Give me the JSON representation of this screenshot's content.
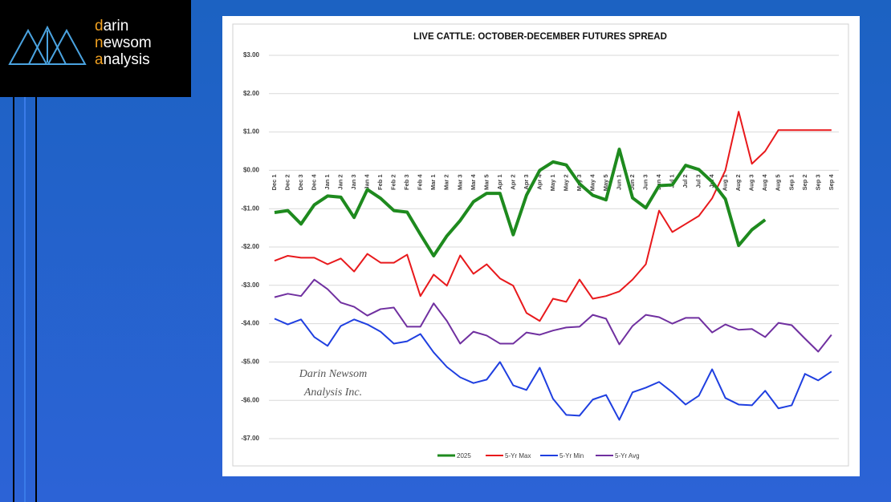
{
  "logo": {
    "lines": [
      "darin",
      "newsom",
      "analysis"
    ]
  },
  "chart_data": {
    "type": "line",
    "title": "LIVE CATTLE: OCTOBER-DECEMBER FUTURES SPREAD",
    "watermark": [
      "Darin Newsom",
      "Analysis Inc."
    ],
    "categories": [
      "Dec 1",
      "Dec 2",
      "Dec 3",
      "Dec 4",
      "Jan 1",
      "Jan 2",
      "Jan 3",
      "Jan 4",
      "Feb 1",
      "Feb 2",
      "Feb 3",
      "Feb 4",
      "Mar 1",
      "Mar 2",
      "Mar 3",
      "Mar 4",
      "Mar 5",
      "Apr 1",
      "Apr 2",
      "Apr 3",
      "Apr 4",
      "May 1",
      "May 2",
      "May 3",
      "May 4",
      "May 5",
      "Jun 1",
      "Jun 2",
      "Jun 3",
      "Jun 4",
      "Jul 1",
      "Jul 2",
      "Jul 3",
      "Jul 4",
      "Aug 1",
      "Aug 2",
      "Aug 3",
      "Aug 4",
      "Aug 5",
      "Sep 1",
      "Sep 2",
      "Sep 3",
      "Sep 4"
    ],
    "series": [
      {
        "name": "2025",
        "color": "#1e8a1e",
        "values": [
          -1.1,
          -1.05,
          -1.4,
          -0.9,
          -0.67,
          -0.7,
          -1.23,
          -0.5,
          -0.73,
          -1.05,
          -1.09,
          -1.67,
          -2.23,
          -1.71,
          -1.31,
          -0.82,
          -0.6,
          -0.6,
          -1.68,
          -0.65,
          0.0,
          0.22,
          0.14,
          -0.35,
          -0.65,
          -0.77,
          0.55,
          -0.72,
          -0.98,
          -0.4,
          -0.38,
          0.13,
          0.02,
          -0.3,
          -0.75,
          -1.96,
          -1.55,
          -1.29,
          null,
          null,
          null,
          null,
          null
        ]
      },
      {
        "name": "5-Yr Max",
        "color": "#e8191c",
        "values": [
          -2.36,
          -2.23,
          -2.28,
          -2.28,
          -2.45,
          -2.3,
          -2.64,
          -2.18,
          -2.41,
          -2.41,
          -2.2,
          -3.28,
          -2.72,
          -3.01,
          -2.22,
          -2.7,
          -2.45,
          -2.82,
          -3.01,
          -3.72,
          -3.93,
          -3.35,
          -3.43,
          -2.85,
          -3.35,
          -3.28,
          -3.16,
          -2.85,
          -2.45,
          -1.05,
          -1.61,
          -1.4,
          -1.19,
          -0.73,
          0.0,
          1.53,
          0.17,
          0.5,
          1.05,
          1.05,
          1.05,
          1.05,
          1.05
        ]
      },
      {
        "name": "5-Yr Min",
        "color": "#1f3fe0",
        "values": [
          -3.87,
          -4.02,
          -3.89,
          -4.35,
          -4.58,
          -4.06,
          -3.89,
          -4.02,
          -4.21,
          -4.52,
          -4.46,
          -4.27,
          -4.75,
          -5.13,
          -5.4,
          -5.55,
          -5.46,
          -5.0,
          -5.61,
          -5.73,
          -5.15,
          -5.96,
          -6.38,
          -6.4,
          -5.98,
          -5.86,
          -6.51,
          -5.79,
          -5.67,
          -5.52,
          -5.79,
          -6.11,
          -5.88,
          -5.19,
          -5.94,
          -6.11,
          -6.13,
          -5.75,
          -6.21,
          -6.13,
          -5.31,
          -5.48,
          -5.25
        ]
      },
      {
        "name": "5-Yr Avg",
        "color": "#7030a0",
        "values": [
          -3.31,
          -3.22,
          -3.28,
          -2.85,
          -3.1,
          -3.45,
          -3.56,
          -3.79,
          -3.62,
          -3.58,
          -4.08,
          -4.08,
          -3.47,
          -3.93,
          -4.52,
          -4.21,
          -4.31,
          -4.52,
          -4.52,
          -4.23,
          -4.29,
          -4.18,
          -4.1,
          -4.08,
          -3.77,
          -3.87,
          -4.54,
          -4.06,
          -3.77,
          -3.83,
          -4.0,
          -3.85,
          -3.85,
          -4.23,
          -4.02,
          -4.16,
          -4.14,
          -4.35,
          -3.98,
          -4.04,
          -4.39,
          -4.73,
          -4.29
        ]
      }
    ],
    "ylim": [
      -7,
      3
    ],
    "yticks": [
      {
        "value": 3,
        "label": "$3.00"
      },
      {
        "value": 2,
        "label": "$2.00"
      },
      {
        "value": 1,
        "label": "$1.00"
      },
      {
        "value": 0,
        "label": "$0.00"
      },
      {
        "value": -1,
        "label": "-$1.00"
      },
      {
        "value": -2,
        "label": "-$2.00"
      },
      {
        "value": -3,
        "label": "-$3.00"
      },
      {
        "value": -4,
        "label": "-$4.00"
      },
      {
        "value": -5,
        "label": "-$5.00"
      },
      {
        "value": -6,
        "label": "-$6.00"
      },
      {
        "value": -7,
        "label": "-$7.00"
      }
    ],
    "grid": true,
    "legend": "bottom"
  }
}
